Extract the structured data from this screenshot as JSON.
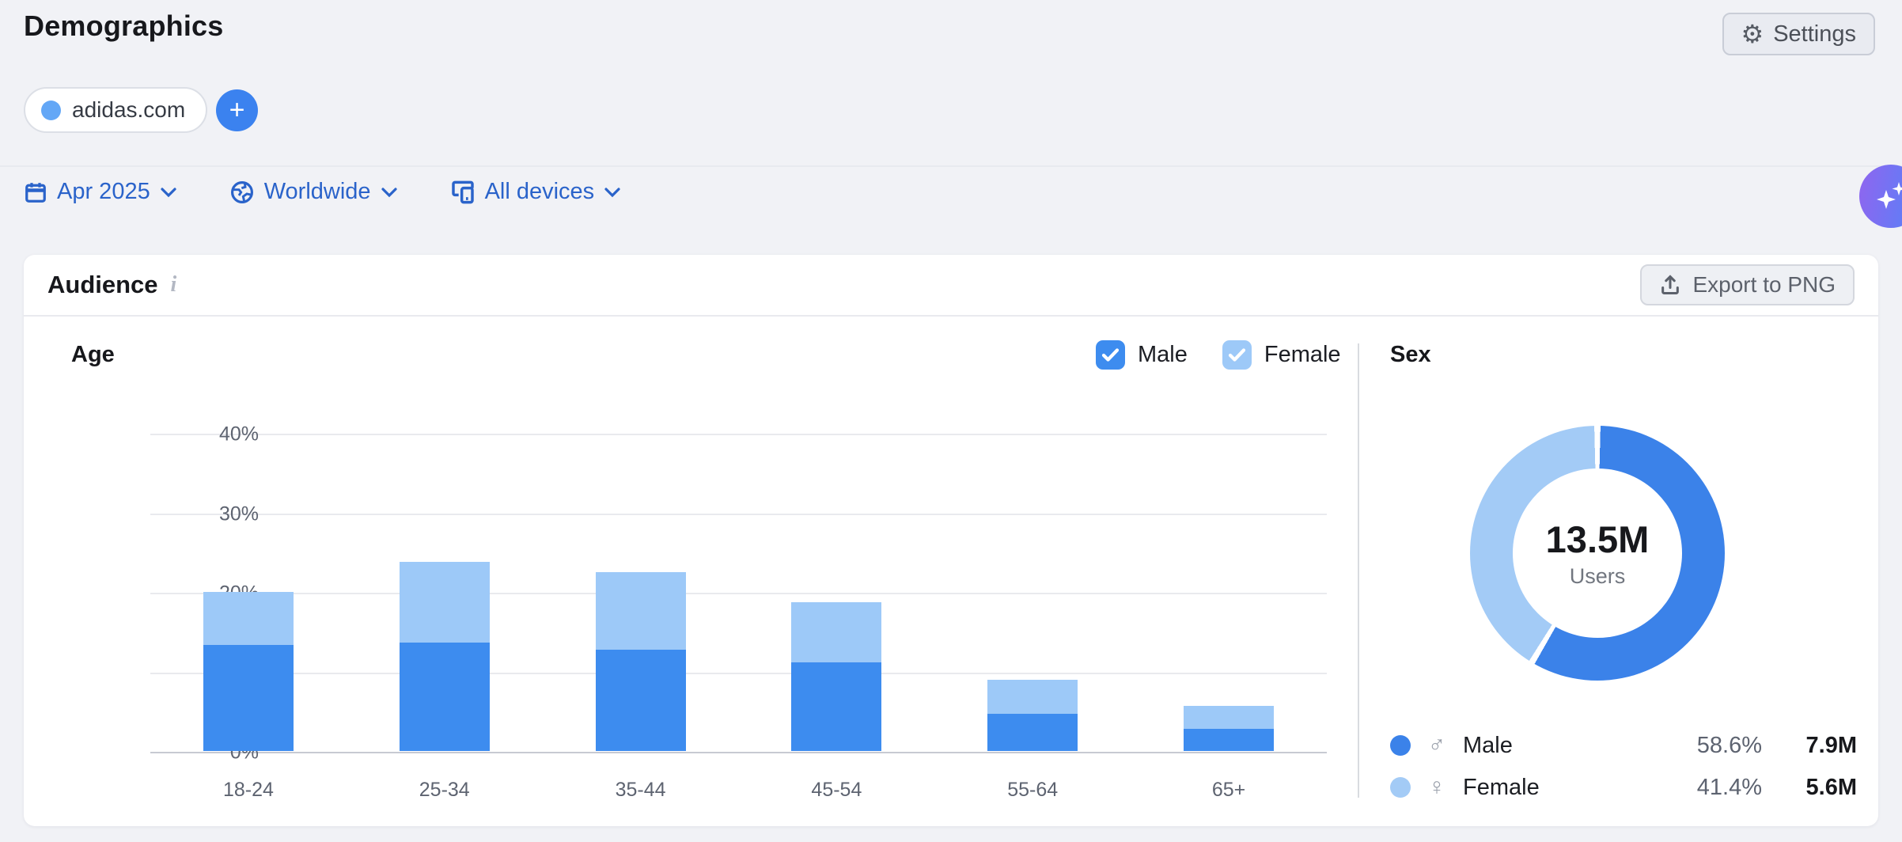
{
  "page": {
    "title": "Demographics"
  },
  "header": {
    "settings_label": "Settings"
  },
  "targets": {
    "domain": "adidas.com",
    "add_label": "+",
    "dot_color": "#63a7f6"
  },
  "filters": [
    {
      "id": "date",
      "label": "Apr 2025"
    },
    {
      "id": "location",
      "label": "Worldwide"
    },
    {
      "id": "device",
      "label": "All devices"
    }
  ],
  "audience_card": {
    "title": "Audience",
    "export_label": "Export to PNG"
  },
  "age_section": {
    "title": "Age",
    "checkboxes": [
      {
        "label": "Male",
        "checked": true,
        "color": "#3d8cef"
      },
      {
        "label": "Female",
        "checked": true,
        "color": "#9dc9f8"
      }
    ]
  },
  "sex_section": {
    "title": "Sex",
    "total_value": "13.5M",
    "total_label": "Users",
    "rows": [
      {
        "label": "Male",
        "symbol": "♂",
        "pct": "58.6%",
        "value": "7.9M",
        "color": "#3b82e9"
      },
      {
        "label": "Female",
        "symbol": "♀",
        "pct": "41.4%",
        "value": "5.6M",
        "color": "#a3cbf6"
      }
    ]
  },
  "chart_data": [
    {
      "type": "bar",
      "stacked": true,
      "title": "Age",
      "categories": [
        "18-24",
        "25-34",
        "35-44",
        "45-54",
        "55-64",
        "65+"
      ],
      "series": [
        {
          "name": "Male",
          "color": "#3d8cef",
          "values": [
            13.3,
            13.6,
            12.7,
            11.1,
            4.7,
            2.8
          ]
        },
        {
          "name": "Female",
          "color": "#9dc9f8",
          "values": [
            6.7,
            10.2,
            9.8,
            7.6,
            4.3,
            2.9
          ]
        }
      ],
      "ylabel": "",
      "yticks": [
        0,
        10,
        20,
        30,
        40
      ],
      "ytick_format": "%",
      "ylim": [
        0,
        40
      ],
      "grid": true,
      "legend_position": "top-right"
    },
    {
      "type": "pie",
      "title": "Sex",
      "labels": [
        "Male",
        "Female"
      ],
      "values": [
        58.6,
        41.4
      ],
      "colors": [
        "#3b82e9",
        "#a3cbf6"
      ],
      "center_value": "13.5M",
      "center_label": "Users"
    }
  ]
}
